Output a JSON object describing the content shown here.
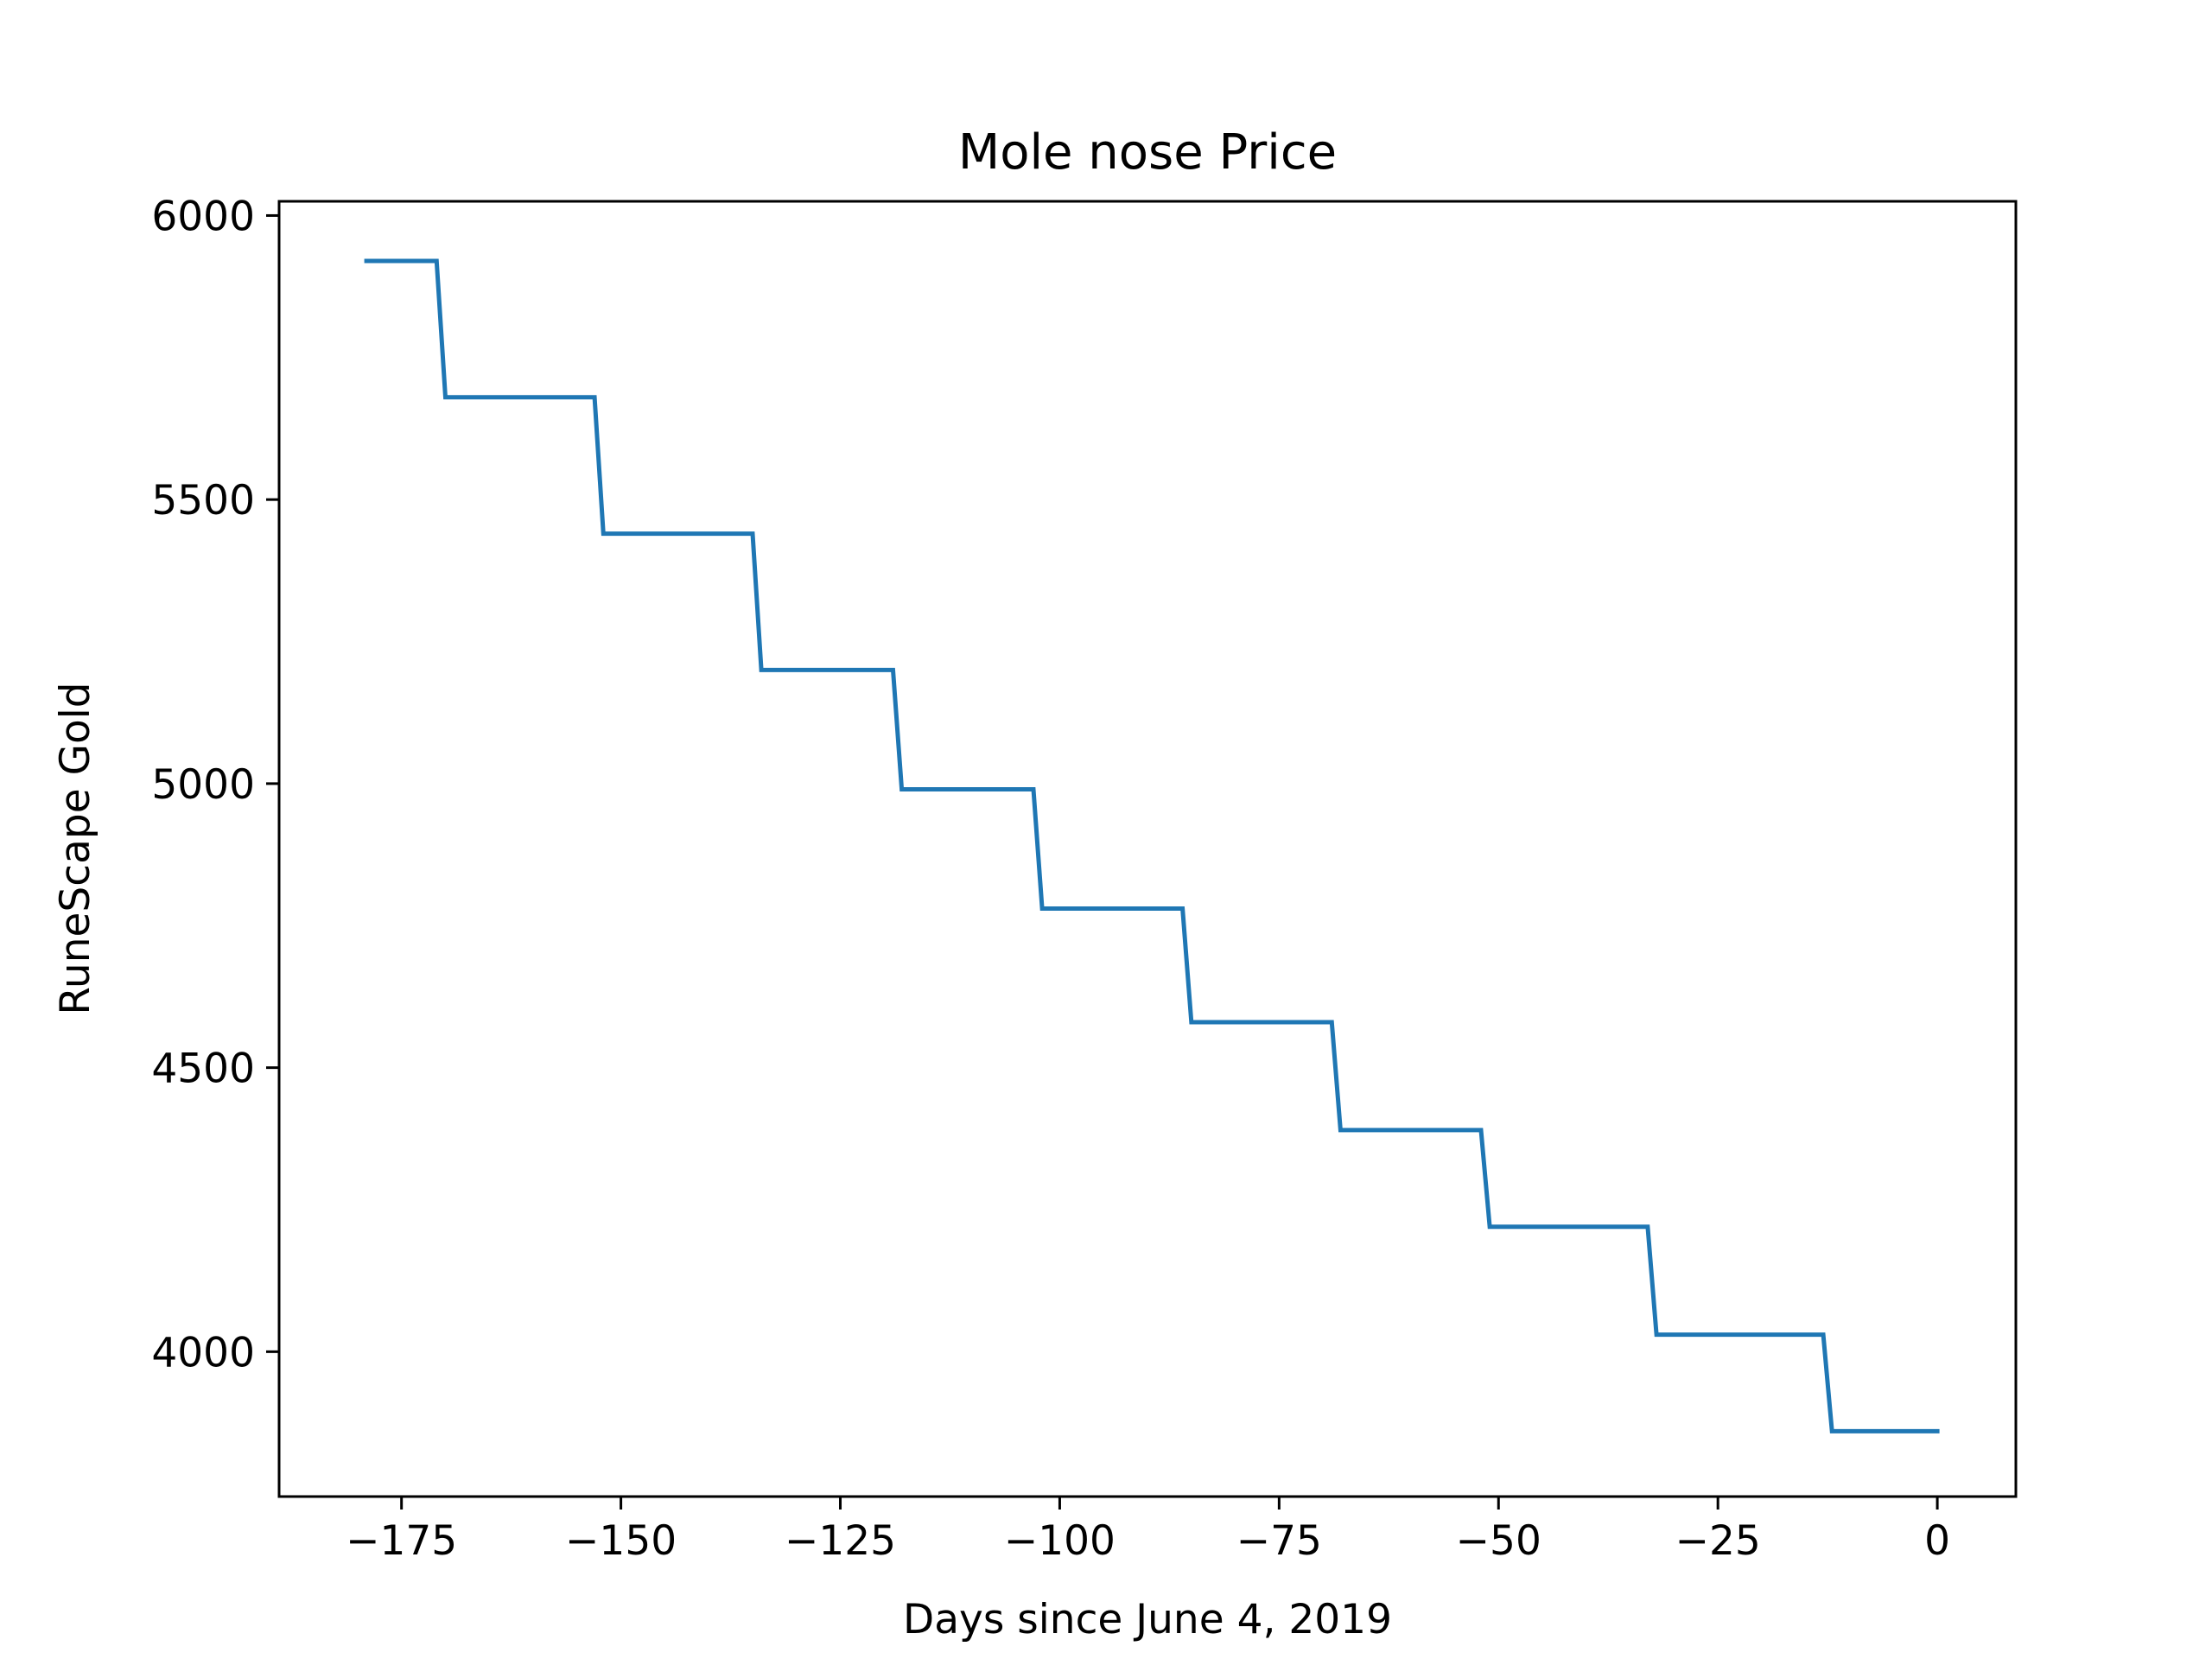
{
  "chart_data": {
    "type": "line",
    "title": "Mole nose Price",
    "xlabel": "Days since June 4, 2019",
    "ylabel": "RuneScape Gold",
    "xlim": [
      -188.95,
      8.95
    ],
    "ylim": [
      3745,
      6025
    ],
    "xticks": [
      -175,
      -150,
      -125,
      -100,
      -75,
      -50,
      -25,
      0
    ],
    "xtick_labels": [
      "−175",
      "−150",
      "−125",
      "−100",
      "−75",
      "−50",
      "−25",
      "0"
    ],
    "yticks": [
      4000,
      4500,
      5000,
      5500,
      6000
    ],
    "ytick_labels": [
      "4000",
      "4500",
      "5000",
      "5500",
      "6000"
    ],
    "grid": false,
    "series": [
      {
        "color": "#1f77b4",
        "x": [
          -179,
          -171,
          -170,
          -153,
          -152,
          -135,
          -134,
          -119,
          -118,
          -103,
          -102,
          -86,
          -85,
          -69,
          -68,
          -52,
          -51,
          -33,
          -32,
          -13,
          -12,
          0
        ],
        "y": [
          5920,
          5920,
          5680,
          5680,
          5440,
          5440,
          5200,
          5200,
          4990,
          4990,
          4780,
          4780,
          4580,
          4580,
          4390,
          4390,
          4220,
          4220,
          4030,
          4030,
          3860,
          3860
        ]
      }
    ]
  }
}
